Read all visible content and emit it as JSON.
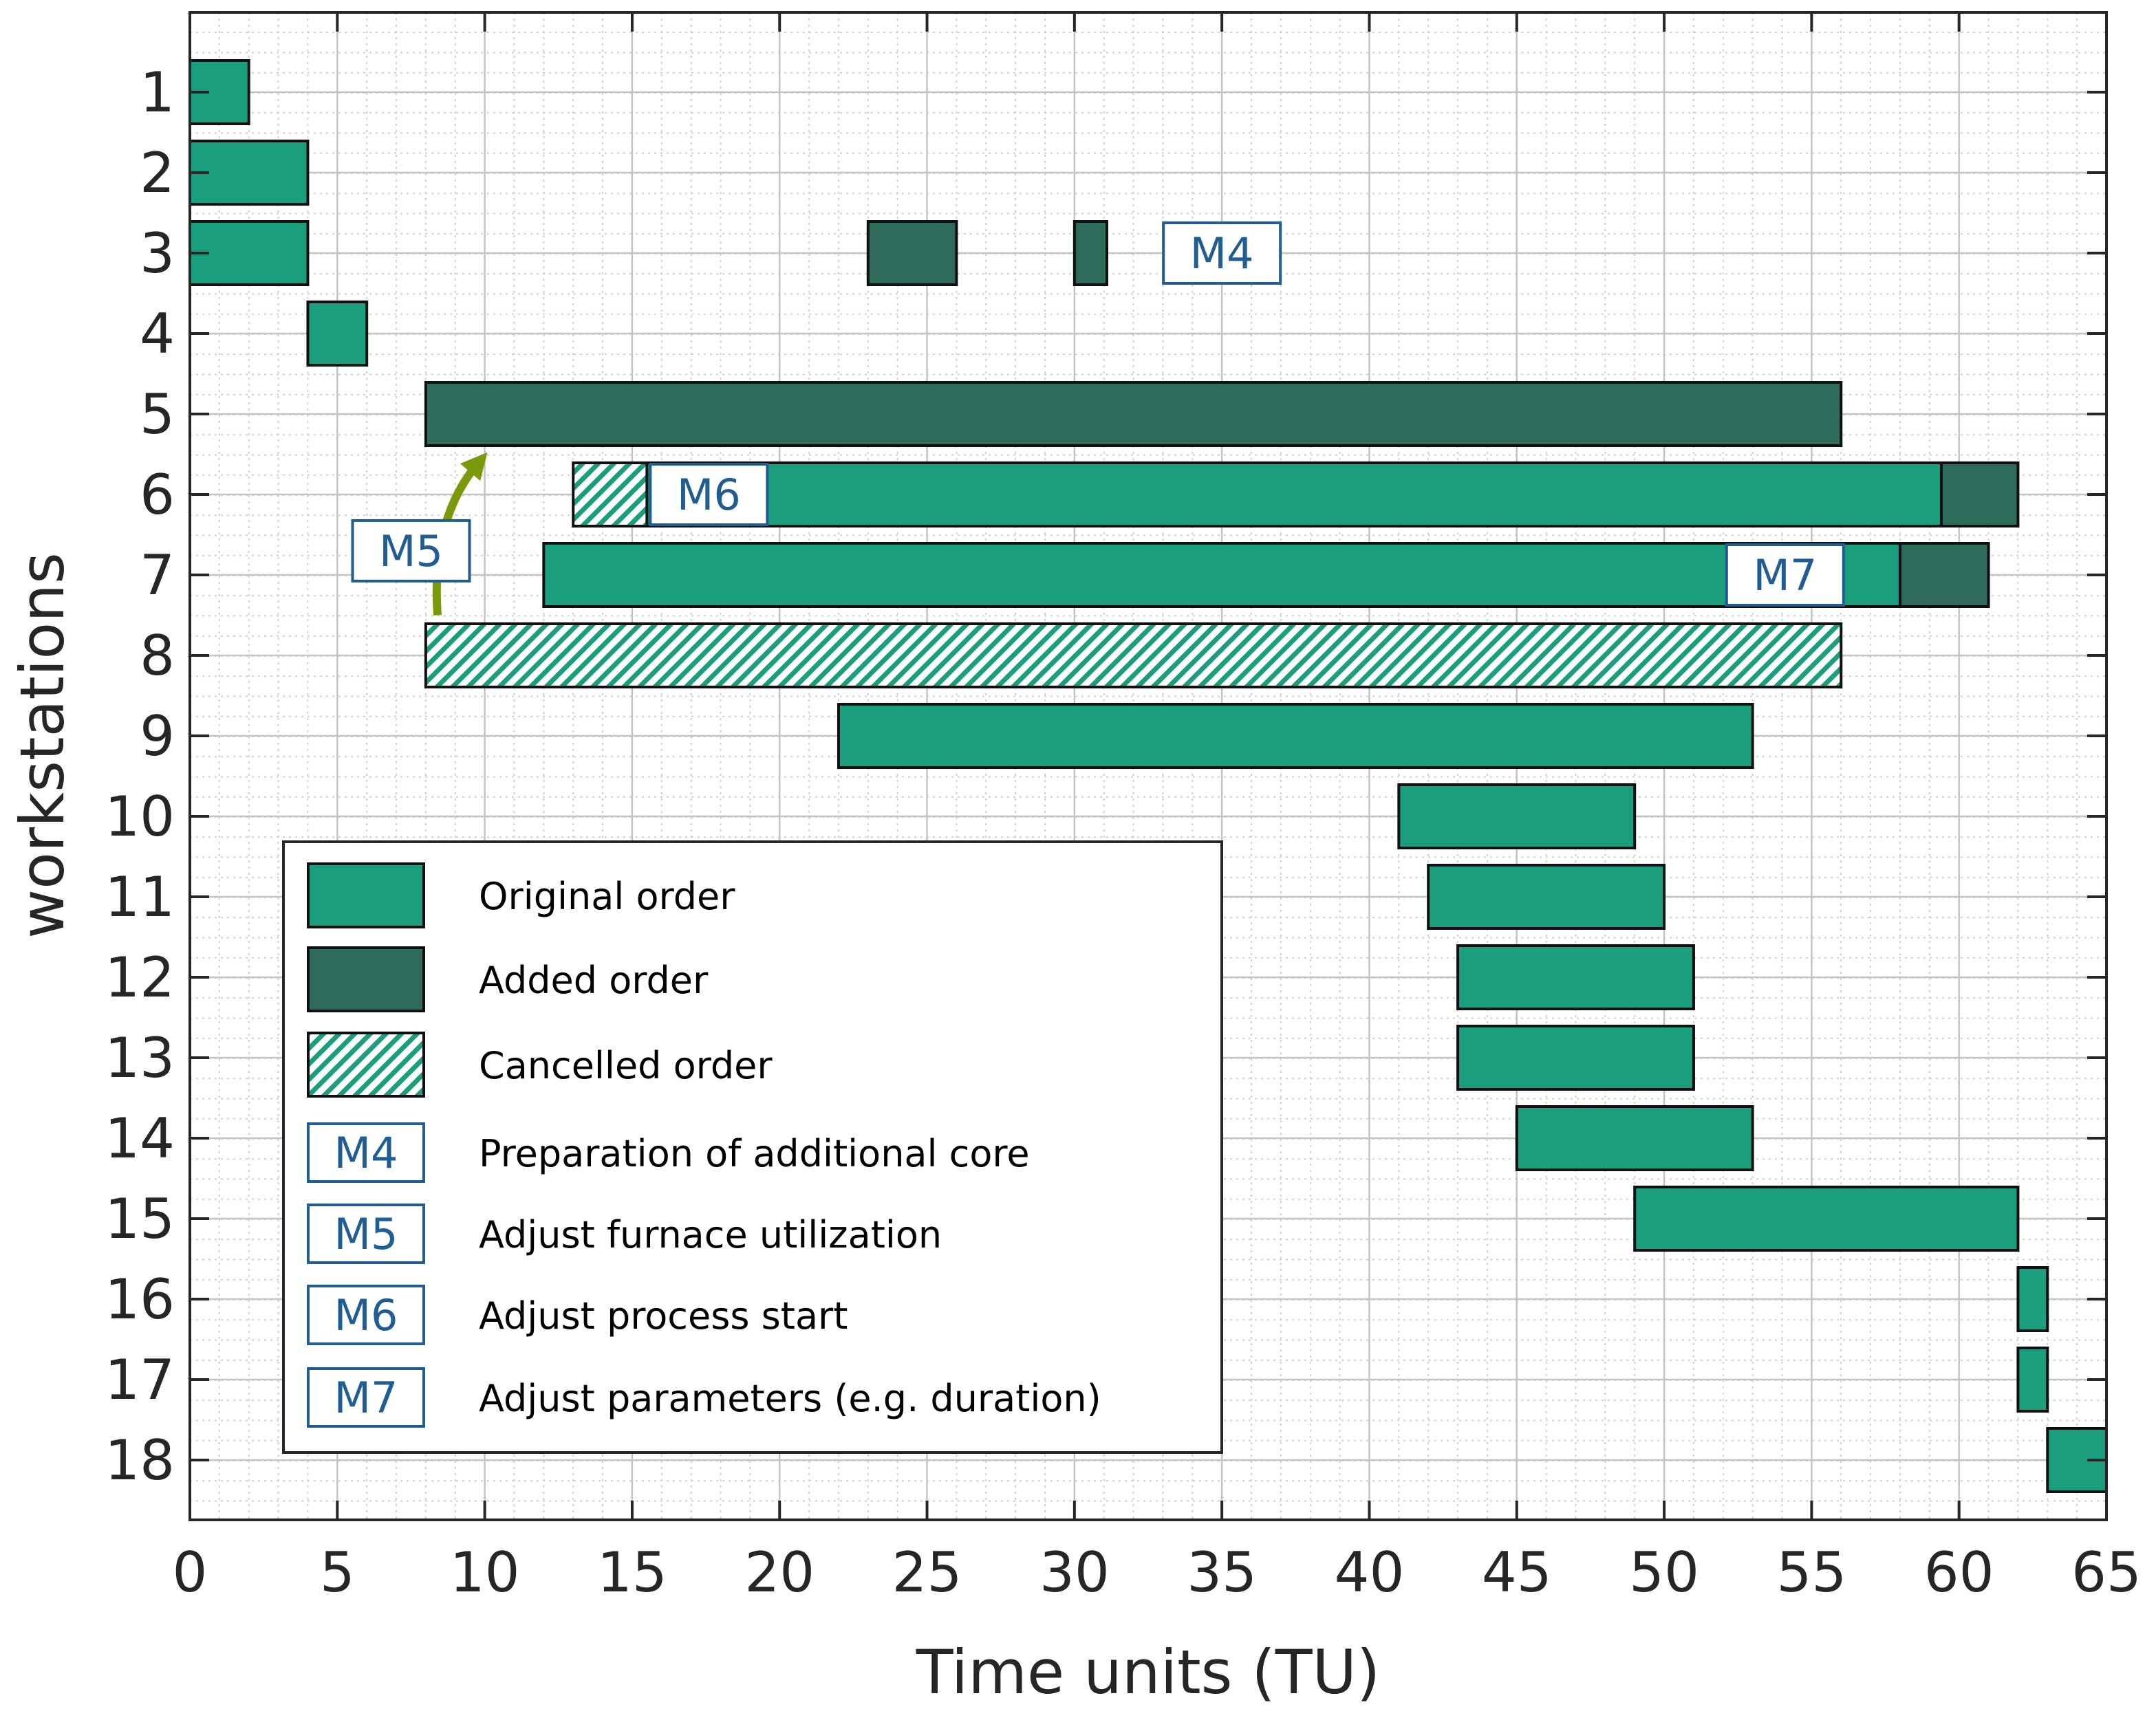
{
  "chart_data": {
    "type": "gantt",
    "title": "",
    "xlabel": "Time units (TU)",
    "ylabel": "workstations",
    "xlim": [
      0,
      65
    ],
    "x_ticks": [
      "0",
      "5",
      "10",
      "15",
      "20",
      "25",
      "30",
      "35",
      "40",
      "45",
      "50",
      "55",
      "60",
      "65"
    ],
    "y_ticks": [
      "1",
      "2",
      "3",
      "4",
      "5",
      "6",
      "7",
      "8",
      "9",
      "10",
      "11",
      "12",
      "13",
      "14",
      "15",
      "16",
      "17",
      "18"
    ],
    "grid": true,
    "minor_grid": true,
    "legend_position": "lower-left",
    "categories": {
      "original": {
        "label": "Original order",
        "color": "#1b9e7d"
      },
      "added": {
        "label": "Added order",
        "color": "#2e6b5a"
      },
      "cancelled": {
        "label": "Cancelled order",
        "color": "#1b9e7d",
        "hatched": true
      }
    },
    "tasks": [
      {
        "workstation": 1,
        "start": 0,
        "end": 2,
        "kind": "original"
      },
      {
        "workstation": 2,
        "start": 0,
        "end": 4,
        "kind": "original"
      },
      {
        "workstation": 3,
        "start": 0,
        "end": 4,
        "kind": "original"
      },
      {
        "workstation": 3,
        "start": 23,
        "end": 26,
        "kind": "added"
      },
      {
        "workstation": 3,
        "start": 30,
        "end": 31.1,
        "kind": "added"
      },
      {
        "workstation": 4,
        "start": 4,
        "end": 6,
        "kind": "original"
      },
      {
        "workstation": 5,
        "start": 8,
        "end": 56,
        "kind": "added"
      },
      {
        "workstation": 6,
        "start": 13,
        "end": 18,
        "kind": "cancelled"
      },
      {
        "workstation": 6,
        "start": 15.5,
        "end": 59.4,
        "kind": "original"
      },
      {
        "workstation": 6,
        "start": 59.4,
        "end": 62,
        "kind": "added"
      },
      {
        "workstation": 7,
        "start": 12,
        "end": 58,
        "kind": "original"
      },
      {
        "workstation": 7,
        "start": 58,
        "end": 61,
        "kind": "added"
      },
      {
        "workstation": 8,
        "start": 8,
        "end": 56,
        "kind": "cancelled"
      },
      {
        "workstation": 9,
        "start": 22,
        "end": 53,
        "kind": "original"
      },
      {
        "workstation": 10,
        "start": 41,
        "end": 49,
        "kind": "original"
      },
      {
        "workstation": 11,
        "start": 42,
        "end": 50,
        "kind": "original"
      },
      {
        "workstation": 12,
        "start": 43,
        "end": 51,
        "kind": "original"
      },
      {
        "workstation": 13,
        "start": 43,
        "end": 51,
        "kind": "original"
      },
      {
        "workstation": 14,
        "start": 45,
        "end": 53,
        "kind": "original"
      },
      {
        "workstation": 15,
        "start": 49,
        "end": 62,
        "kind": "original"
      },
      {
        "workstation": 16,
        "start": 62,
        "end": 63,
        "kind": "original"
      },
      {
        "workstation": 17,
        "start": 62,
        "end": 63,
        "kind": "original"
      },
      {
        "workstation": 18,
        "start": 63,
        "end": 65,
        "kind": "original"
      }
    ],
    "measures": [
      {
        "id": "M4",
        "label": "M4",
        "description": "Preparation of additional core",
        "x": 35,
        "workstation": 3
      },
      {
        "id": "M5",
        "label": "M5",
        "description": "Adjust furnace utilization",
        "x": 7.5,
        "workstation": 6.7
      },
      {
        "id": "M6",
        "label": "M6",
        "description": "Adjust process start",
        "x": 17.6,
        "workstation": 6
      },
      {
        "id": "M7",
        "label": "M7",
        "description": "Adjust parameters (e.g. duration)",
        "x": 54.1,
        "workstation": 7
      }
    ],
    "arrows": [
      {
        "from": {
          "x": 8.4,
          "workstation": 7.5
        },
        "to": {
          "x": 9.8,
          "workstation": 5.6
        },
        "color": "#7a9a0c",
        "meaning": "M5: move order from workstation 8 to 5"
      }
    ],
    "legend": [
      {
        "swatch": "original",
        "text": "Original order"
      },
      {
        "swatch": "added",
        "text": "Added order"
      },
      {
        "swatch": "cancelled",
        "text": "Cancelled order"
      },
      {
        "swatch": "measure",
        "label": "M4",
        "text": "Preparation of additional core"
      },
      {
        "swatch": "measure",
        "label": "M5",
        "text": "Adjust furnace utilization"
      },
      {
        "swatch": "measure",
        "label": "M6",
        "text": "Adjust process start"
      },
      {
        "swatch": "measure",
        "label": "M7",
        "text": "Adjust parameters (e.g. duration)"
      }
    ]
  }
}
